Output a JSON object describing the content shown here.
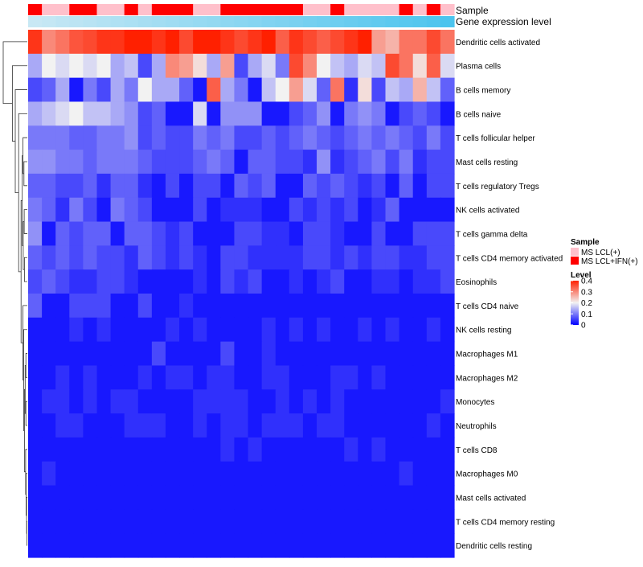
{
  "chart_data": {
    "type": "heatmap",
    "title": "",
    "annotation_tracks": [
      "Sample",
      "Gene expression level"
    ],
    "sample_groups": [
      "MS LCL(+)",
      "MS LCL+IFN(+)"
    ],
    "sample_group_per_column": [
      1,
      0,
      0,
      1,
      1,
      0,
      0,
      1,
      0,
      1,
      1,
      1,
      0,
      0,
      1,
      1,
      1,
      1,
      1,
      1,
      0,
      0,
      1,
      0,
      0,
      0,
      0,
      1,
      0,
      1,
      0
    ],
    "gene_expression_level_per_column": [
      0.0,
      0.03,
      0.07,
      0.1,
      0.13,
      0.17,
      0.2,
      0.23,
      0.27,
      0.3,
      0.33,
      0.37,
      0.4,
      0.43,
      0.47,
      0.5,
      0.53,
      0.57,
      0.6,
      0.63,
      0.67,
      0.7,
      0.73,
      0.77,
      0.8,
      0.83,
      0.87,
      0.9,
      0.93,
      0.97,
      1.0
    ],
    "rows": [
      "Dendritic cells activated",
      "Plasma cells",
      "B cells memory",
      "B cells naive",
      "T cells follicular helper",
      "Mast cells resting",
      "T cells regulatory  Tregs",
      "NK cells activated",
      "T cells gamma delta",
      "T cells CD4 memory activated",
      "Eosinophils",
      "T cells CD4 naive",
      "NK cells resting",
      "Macrophages M1",
      "Macrophages M2",
      "Monocytes",
      "Neutrophils",
      "T cells CD8",
      "Macrophages M0",
      "Mast cells activated",
      "T cells CD4 memory resting",
      "Dendritic cells resting"
    ],
    "values": [
      [
        0.38,
        0.3,
        0.32,
        0.35,
        0.36,
        0.38,
        0.38,
        0.4,
        0.4,
        0.38,
        0.4,
        0.36,
        0.4,
        0.4,
        0.38,
        0.36,
        0.38,
        0.4,
        0.34,
        0.38,
        0.36,
        0.34,
        0.36,
        0.38,
        0.4,
        0.28,
        0.26,
        0.32,
        0.32,
        0.36,
        0.32
      ],
      [
        0.14,
        0.2,
        0.18,
        0.2,
        0.18,
        0.2,
        0.14,
        0.16,
        0.06,
        0.14,
        0.3,
        0.28,
        0.22,
        0.14,
        0.28,
        0.06,
        0.14,
        0.18,
        0.1,
        0.36,
        0.3,
        0.2,
        0.16,
        0.14,
        0.18,
        0.16,
        0.36,
        0.32,
        0.22,
        0.34,
        0.18
      ],
      [
        0.06,
        0.08,
        0.14,
        0.02,
        0.1,
        0.06,
        0.14,
        0.1,
        0.2,
        0.14,
        0.14,
        0.08,
        0.02,
        0.34,
        0.14,
        0.1,
        0.02,
        0.16,
        0.2,
        0.28,
        0.18,
        0.08,
        0.32,
        0.04,
        0.22,
        0.06,
        0.16,
        0.14,
        0.26,
        0.16,
        0.08
      ],
      [
        0.14,
        0.16,
        0.18,
        0.2,
        0.16,
        0.16,
        0.14,
        0.12,
        0.06,
        0.08,
        0.02,
        0.02,
        0.18,
        0.02,
        0.12,
        0.12,
        0.12,
        0.02,
        0.02,
        0.06,
        0.08,
        0.12,
        0.02,
        0.1,
        0.12,
        0.1,
        0.02,
        0.06,
        0.08,
        0.06,
        0.02
      ],
      [
        0.1,
        0.1,
        0.1,
        0.08,
        0.08,
        0.1,
        0.1,
        0.12,
        0.06,
        0.08,
        0.06,
        0.06,
        0.1,
        0.08,
        0.1,
        0.06,
        0.06,
        0.08,
        0.06,
        0.08,
        0.1,
        0.08,
        0.06,
        0.08,
        0.1,
        0.08,
        0.1,
        0.08,
        0.06,
        0.1,
        0.06
      ],
      [
        0.12,
        0.12,
        0.1,
        0.1,
        0.08,
        0.1,
        0.1,
        0.1,
        0.08,
        0.06,
        0.06,
        0.06,
        0.08,
        0.1,
        0.08,
        0.02,
        0.08,
        0.08,
        0.06,
        0.06,
        0.04,
        0.12,
        0.04,
        0.06,
        0.08,
        0.1,
        0.06,
        0.1,
        0.04,
        0.06,
        0.06
      ],
      [
        0.08,
        0.08,
        0.06,
        0.06,
        0.08,
        0.04,
        0.08,
        0.08,
        0.04,
        0.02,
        0.06,
        0.02,
        0.06,
        0.06,
        0.02,
        0.08,
        0.06,
        0.08,
        0.02,
        0.02,
        0.08,
        0.06,
        0.08,
        0.06,
        0.04,
        0.06,
        0.02,
        0.08,
        0.02,
        0.06,
        0.06
      ],
      [
        0.1,
        0.08,
        0.04,
        0.1,
        0.06,
        0.02,
        0.1,
        0.08,
        0.06,
        0.02,
        0.02,
        0.02,
        0.06,
        0.02,
        0.04,
        0.04,
        0.04,
        0.02,
        0.02,
        0.06,
        0.04,
        0.06,
        0.04,
        0.06,
        0.02,
        0.04,
        0.08,
        0.02,
        0.02,
        0.02,
        0.02
      ],
      [
        0.12,
        0.02,
        0.08,
        0.06,
        0.08,
        0.08,
        0.02,
        0.08,
        0.08,
        0.06,
        0.04,
        0.06,
        0.02,
        0.02,
        0.02,
        0.06,
        0.06,
        0.04,
        0.04,
        0.02,
        0.06,
        0.06,
        0.04,
        0.02,
        0.02,
        0.06,
        0.02,
        0.02,
        0.06,
        0.06,
        0.06
      ],
      [
        0.08,
        0.06,
        0.08,
        0.06,
        0.08,
        0.06,
        0.06,
        0.04,
        0.08,
        0.06,
        0.04,
        0.06,
        0.04,
        0.02,
        0.06,
        0.06,
        0.04,
        0.04,
        0.04,
        0.04,
        0.06,
        0.06,
        0.04,
        0.06,
        0.04,
        0.06,
        0.06,
        0.04,
        0.04,
        0.06,
        0.06
      ],
      [
        0.06,
        0.08,
        0.06,
        0.04,
        0.04,
        0.06,
        0.06,
        0.04,
        0.02,
        0.02,
        0.02,
        0.02,
        0.04,
        0.02,
        0.06,
        0.04,
        0.06,
        0.02,
        0.02,
        0.04,
        0.02,
        0.04,
        0.06,
        0.02,
        0.02,
        0.04,
        0.04,
        0.02,
        0.04,
        0.04,
        0.06
      ],
      [
        0.08,
        0.02,
        0.02,
        0.06,
        0.06,
        0.06,
        0.02,
        0.02,
        0.06,
        0.02,
        0.02,
        0.04,
        0.02,
        0.02,
        0.02,
        0.02,
        0.02,
        0.02,
        0.02,
        0.02,
        0.02,
        0.02,
        0.02,
        0.02,
        0.02,
        0.02,
        0.02,
        0.02,
        0.02,
        0.02,
        0.02
      ],
      [
        0.02,
        0.02,
        0.02,
        0.04,
        0.02,
        0.04,
        0.02,
        0.02,
        0.02,
        0.02,
        0.04,
        0.02,
        0.04,
        0.02,
        0.02,
        0.02,
        0.02,
        0.04,
        0.02,
        0.04,
        0.02,
        0.04,
        0.02,
        0.02,
        0.04,
        0.02,
        0.04,
        0.02,
        0.02,
        0.04,
        0.02
      ],
      [
        0.02,
        0.02,
        0.02,
        0.02,
        0.02,
        0.02,
        0.02,
        0.02,
        0.02,
        0.06,
        0.02,
        0.02,
        0.02,
        0.02,
        0.06,
        0.02,
        0.02,
        0.04,
        0.02,
        0.02,
        0.02,
        0.02,
        0.02,
        0.02,
        0.02,
        0.02,
        0.02,
        0.02,
        0.02,
        0.02,
        0.02
      ],
      [
        0.02,
        0.02,
        0.04,
        0.02,
        0.04,
        0.02,
        0.02,
        0.02,
        0.04,
        0.02,
        0.04,
        0.04,
        0.02,
        0.04,
        0.04,
        0.02,
        0.02,
        0.04,
        0.04,
        0.02,
        0.02,
        0.02,
        0.04,
        0.04,
        0.02,
        0.04,
        0.02,
        0.02,
        0.02,
        0.02,
        0.02
      ],
      [
        0.02,
        0.04,
        0.04,
        0.02,
        0.04,
        0.02,
        0.04,
        0.04,
        0.02,
        0.02,
        0.02,
        0.02,
        0.04,
        0.04,
        0.04,
        0.04,
        0.02,
        0.02,
        0.04,
        0.02,
        0.04,
        0.02,
        0.04,
        0.02,
        0.02,
        0.02,
        0.02,
        0.02,
        0.02,
        0.02,
        0.04
      ],
      [
        0.02,
        0.02,
        0.04,
        0.04,
        0.02,
        0.02,
        0.02,
        0.04,
        0.04,
        0.04,
        0.02,
        0.02,
        0.04,
        0.02,
        0.04,
        0.04,
        0.02,
        0.04,
        0.04,
        0.04,
        0.02,
        0.04,
        0.04,
        0.02,
        0.02,
        0.02,
        0.02,
        0.02,
        0.02,
        0.04,
        0.02
      ],
      [
        0.02,
        0.02,
        0.02,
        0.02,
        0.02,
        0.02,
        0.02,
        0.02,
        0.02,
        0.02,
        0.02,
        0.02,
        0.02,
        0.02,
        0.04,
        0.02,
        0.04,
        0.02,
        0.02,
        0.02,
        0.02,
        0.02,
        0.02,
        0.04,
        0.02,
        0.04,
        0.02,
        0.02,
        0.02,
        0.02,
        0.02
      ],
      [
        0.02,
        0.04,
        0.02,
        0.02,
        0.02,
        0.02,
        0.02,
        0.02,
        0.02,
        0.02,
        0.02,
        0.02,
        0.02,
        0.02,
        0.02,
        0.02,
        0.02,
        0.02,
        0.02,
        0.02,
        0.02,
        0.02,
        0.02,
        0.02,
        0.02,
        0.02,
        0.02,
        0.04,
        0.02,
        0.02,
        0.02
      ],
      [
        0.02,
        0.02,
        0.02,
        0.02,
        0.02,
        0.02,
        0.02,
        0.02,
        0.02,
        0.02,
        0.02,
        0.02,
        0.02,
        0.02,
        0.02,
        0.02,
        0.02,
        0.02,
        0.02,
        0.02,
        0.02,
        0.02,
        0.02,
        0.02,
        0.02,
        0.02,
        0.02,
        0.02,
        0.02,
        0.02,
        0.02
      ],
      [
        0.02,
        0.02,
        0.02,
        0.02,
        0.02,
        0.02,
        0.02,
        0.02,
        0.02,
        0.02,
        0.02,
        0.02,
        0.02,
        0.02,
        0.02,
        0.02,
        0.02,
        0.02,
        0.02,
        0.02,
        0.02,
        0.02,
        0.02,
        0.02,
        0.02,
        0.02,
        0.02,
        0.02,
        0.02,
        0.02,
        0.02
      ],
      [
        0.02,
        0.02,
        0.02,
        0.02,
        0.02,
        0.02,
        0.02,
        0.02,
        0.02,
        0.02,
        0.02,
        0.02,
        0.02,
        0.02,
        0.02,
        0.02,
        0.02,
        0.02,
        0.02,
        0.02,
        0.02,
        0.02,
        0.02,
        0.02,
        0.02,
        0.02,
        0.02,
        0.02,
        0.02,
        0.02,
        0.02
      ]
    ],
    "color_scale": {
      "min": 0,
      "mid": 0.2,
      "max": 0.4,
      "low_color": "#0000ff",
      "mid_color": "#f2f2f2",
      "high_color": "#ff2000"
    },
    "annotation_colors": {
      "MS LCL(+)": "#ffc0cb",
      "MS LCL+IFN(+)": "#ff0000",
      "expr_low": "#c8e8f4",
      "expr_high": "#4cc4ee"
    },
    "legend": {
      "sample_title": "Sample",
      "level_title": "Level",
      "level_ticks": [
        "0.4",
        "0.3",
        "0.2",
        "0.1",
        "0"
      ],
      "level_tick_values": [
        0.4,
        0.3,
        0.2,
        0.1,
        0.0
      ],
      "placement": "right"
    },
    "row_dendrogram": true
  }
}
